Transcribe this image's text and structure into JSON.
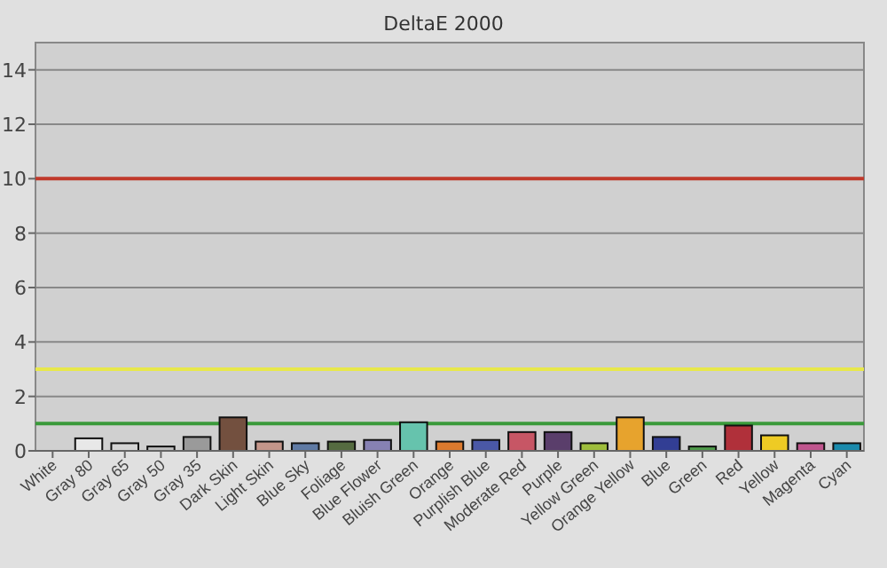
{
  "chart_data": {
    "type": "bar",
    "title": "DeltaE 2000",
    "categories": [
      "White",
      "Gray 80",
      "Gray 65",
      "Gray 50",
      "Gray 35",
      "Dark Skin",
      "Light Skin",
      "Blue Sky",
      "Foliage",
      "Blue Flower",
      "Bluish Green",
      "Orange",
      "Purplish Blue",
      "Moderate Red",
      "Purple",
      "Yellow Green",
      "Orange Yellow",
      "Blue",
      "Green",
      "Red",
      "Yellow",
      "Magenta",
      "Cyan"
    ],
    "values": [
      0,
      0.46,
      0.28,
      0.16,
      0.51,
      1.23,
      0.34,
      0.28,
      0.34,
      0.4,
      1.05,
      0.34,
      0.4,
      0.69,
      0.69,
      0.28,
      1.23,
      0.51,
      0.16,
      0.93,
      0.57,
      0.28,
      0.28
    ],
    "colors": [
      "#f4f4f4",
      "#e8e8e8",
      "#d4d4d4",
      "#bdbdbd",
      "#9a9a9a",
      "#73503f",
      "#c4968a",
      "#5f7aa4",
      "#556b40",
      "#8681b3",
      "#66c3ad",
      "#dc7a2e",
      "#4a58a6",
      "#c75665",
      "#5a3e6b",
      "#9ebd3c",
      "#e7a32d",
      "#323e94",
      "#4f9a4a",
      "#b0303a",
      "#eecb24",
      "#c0558e",
      "#1a8aac"
    ],
    "ylim": [
      0,
      15
    ],
    "yticks": [
      0,
      2,
      4,
      6,
      8,
      10,
      12,
      14
    ],
    "grid": "y",
    "ref_lines": [
      {
        "axis": "y",
        "value": 10,
        "color": "#c0392b"
      },
      {
        "axis": "y",
        "value": 3,
        "color": "#e8e84a"
      },
      {
        "axis": "y",
        "value": 1,
        "color": "#3a9a3a"
      }
    ]
  }
}
